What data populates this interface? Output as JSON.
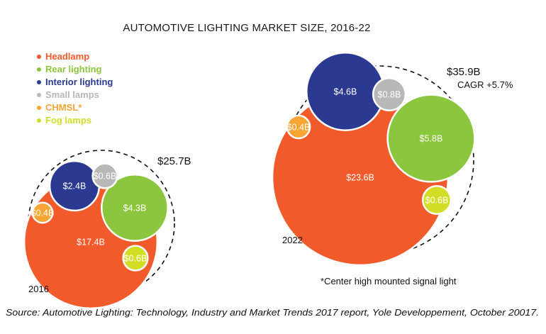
{
  "chart_data": {
    "type": "bubble",
    "title": "AUTOMOTIVE LIGHTING MARKET SIZE, 2016-22",
    "legend_position": "top-left",
    "series": [
      {
        "name": "Headlamp",
        "color": "#f15a2b"
      },
      {
        "name": "Rear lighting",
        "color": "#8cc63f"
      },
      {
        "name": "Interior lighting",
        "color": "#2b3990"
      },
      {
        "name": "Small lamps",
        "color": "#b8b8b8"
      },
      {
        "name": "CHMSL*",
        "color": "#f7a535"
      },
      {
        "name": "Fog lamps",
        "color": "#d2de26"
      }
    ],
    "groups": [
      {
        "year": "2016",
        "total_label": "$25.7B",
        "cagr_label": "",
        "values": [
          {
            "series": "Headlamp",
            "value": 17.4,
            "label": "$17.4B"
          },
          {
            "series": "Rear lighting",
            "value": 4.3,
            "label": "$4.3B"
          },
          {
            "series": "Interior lighting",
            "value": 2.4,
            "label": "$2.4B"
          },
          {
            "series": "Small lamps",
            "value": 0.6,
            "label": "$0.6B"
          },
          {
            "series": "CHMSL*",
            "value": 0.4,
            "label": "$0.4B"
          },
          {
            "series": "Fog lamps",
            "value": 0.6,
            "label": "$0.6B"
          }
        ]
      },
      {
        "year": "2022",
        "total_label": "$35.9B",
        "cagr_label": "CAGR +5.7%",
        "values": [
          {
            "series": "Headlamp",
            "value": 23.6,
            "label": "$23.6B"
          },
          {
            "series": "Rear lighting",
            "value": 5.8,
            "label": "$5.8B"
          },
          {
            "series": "Interior lighting",
            "value": 4.6,
            "label": "$4.6B"
          },
          {
            "series": "Small lamps",
            "value": 0.8,
            "label": "$0.8B"
          },
          {
            "series": "CHMSL*",
            "value": 0.4,
            "label": "$0.4B"
          },
          {
            "series": "Fog lamps",
            "value": 0.6,
            "label": "$0.6B"
          }
        ]
      }
    ],
    "footnote": "*Center high mounted signal light",
    "source": "Source: Automotive Lighting: Technology, Industry and Market Trends 2017 report, Yole Developpement, October 20017."
  }
}
